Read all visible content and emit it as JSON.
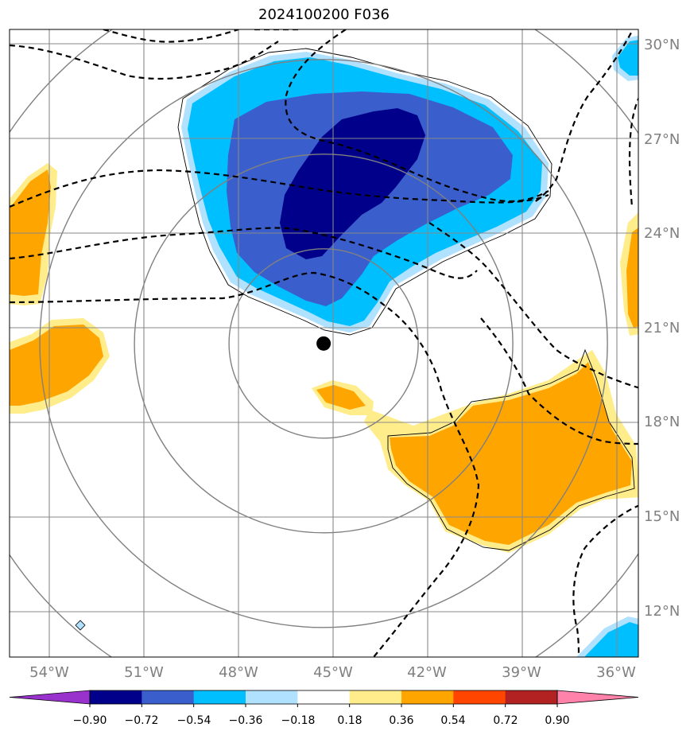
{
  "title": "2024100200 F036",
  "map": {
    "lon_labels": [
      "54°W",
      "51°W",
      "48°W",
      "45°W",
      "42°W",
      "39°W",
      "36°W"
    ],
    "lat_labels": [
      "30°N",
      "27°N",
      "24°N",
      "21°N",
      "18°N",
      "15°N",
      "12°N"
    ],
    "storm_center": {
      "lon": -45.3,
      "lat": 20.5
    },
    "range_rings_deg": [
      3,
      6,
      9,
      12
    ],
    "colors": {
      "neg_090_072": "#00008b",
      "neg_072_054": "#3a5fcd",
      "neg_054_036": "#00bfff",
      "neg_036_018": "#b0e2ff",
      "pos_018_036": "#ffec8b",
      "pos_036_054": "#ffa500",
      "grid": "#888888",
      "label": "#808080"
    }
  },
  "colorbar": {
    "ticks": [
      "−0.90",
      "−0.72",
      "−0.54",
      "−0.36",
      "−0.18",
      "0.18",
      "0.36",
      "0.54",
      "0.72",
      "0.90"
    ],
    "colors": [
      "#9932cc",
      "#00008b",
      "#3a5fcd",
      "#00bfff",
      "#b0e2ff",
      "#ffffff",
      "#ffec8b",
      "#ffa500",
      "#ff4500",
      "#b22222",
      "#ff82ab"
    ]
  }
}
